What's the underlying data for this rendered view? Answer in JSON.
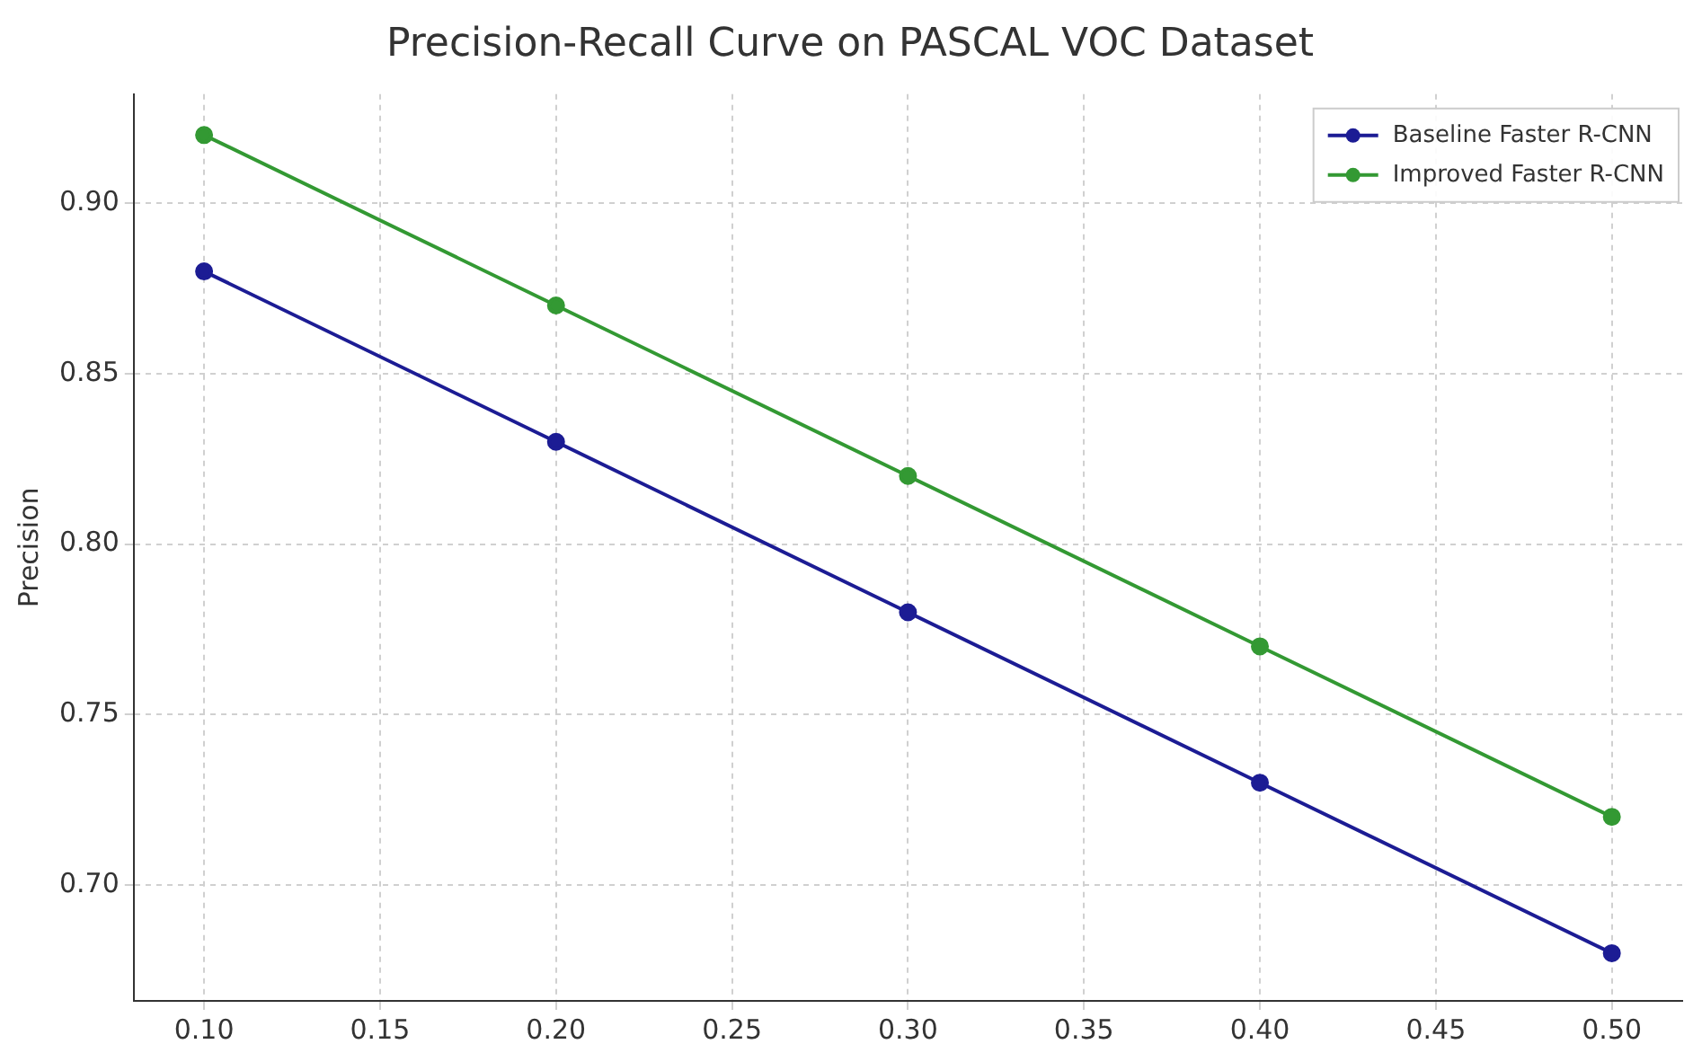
{
  "chart_data": {
    "type": "line",
    "title": "Precision-Recall Curve on PASCAL VOC Dataset",
    "ylabel": "Precision",
    "x": [
      0.1,
      0.2,
      0.3,
      0.4,
      0.5
    ],
    "series": [
      {
        "name": "Baseline Faster R-CNN",
        "color": "#1c1c94",
        "values": [
          0.88,
          0.83,
          0.78,
          0.73,
          0.68
        ]
      },
      {
        "name": "Improved Faster R-CNN",
        "color": "#339933",
        "values": [
          0.92,
          0.87,
          0.82,
          0.77,
          0.72
        ]
      }
    ],
    "xlim": [
      0.08,
      0.52
    ],
    "xticks": [
      {
        "value": 0.1,
        "label": "0.10"
      },
      {
        "value": 0.15,
        "label": "0.15"
      },
      {
        "value": 0.2,
        "label": "0.20"
      },
      {
        "value": 0.25,
        "label": "0.25"
      },
      {
        "value": 0.3,
        "label": "0.30"
      },
      {
        "value": 0.35,
        "label": "0.35"
      },
      {
        "value": 0.4,
        "label": "0.40"
      },
      {
        "value": 0.45,
        "label": "0.45"
      },
      {
        "value": 0.5,
        "label": "0.50"
      }
    ],
    "ylim": [
      0.666,
      0.932
    ],
    "yticks": [
      {
        "value": 0.7,
        "label": "0.70"
      },
      {
        "value": 0.75,
        "label": "0.75"
      },
      {
        "value": 0.8,
        "label": "0.80"
      },
      {
        "value": 0.85,
        "label": "0.85"
      },
      {
        "value": 0.9,
        "label": "0.90"
      }
    ],
    "grid": true,
    "legend": "top right",
    "marker": "circle",
    "line_style": "solid"
  }
}
